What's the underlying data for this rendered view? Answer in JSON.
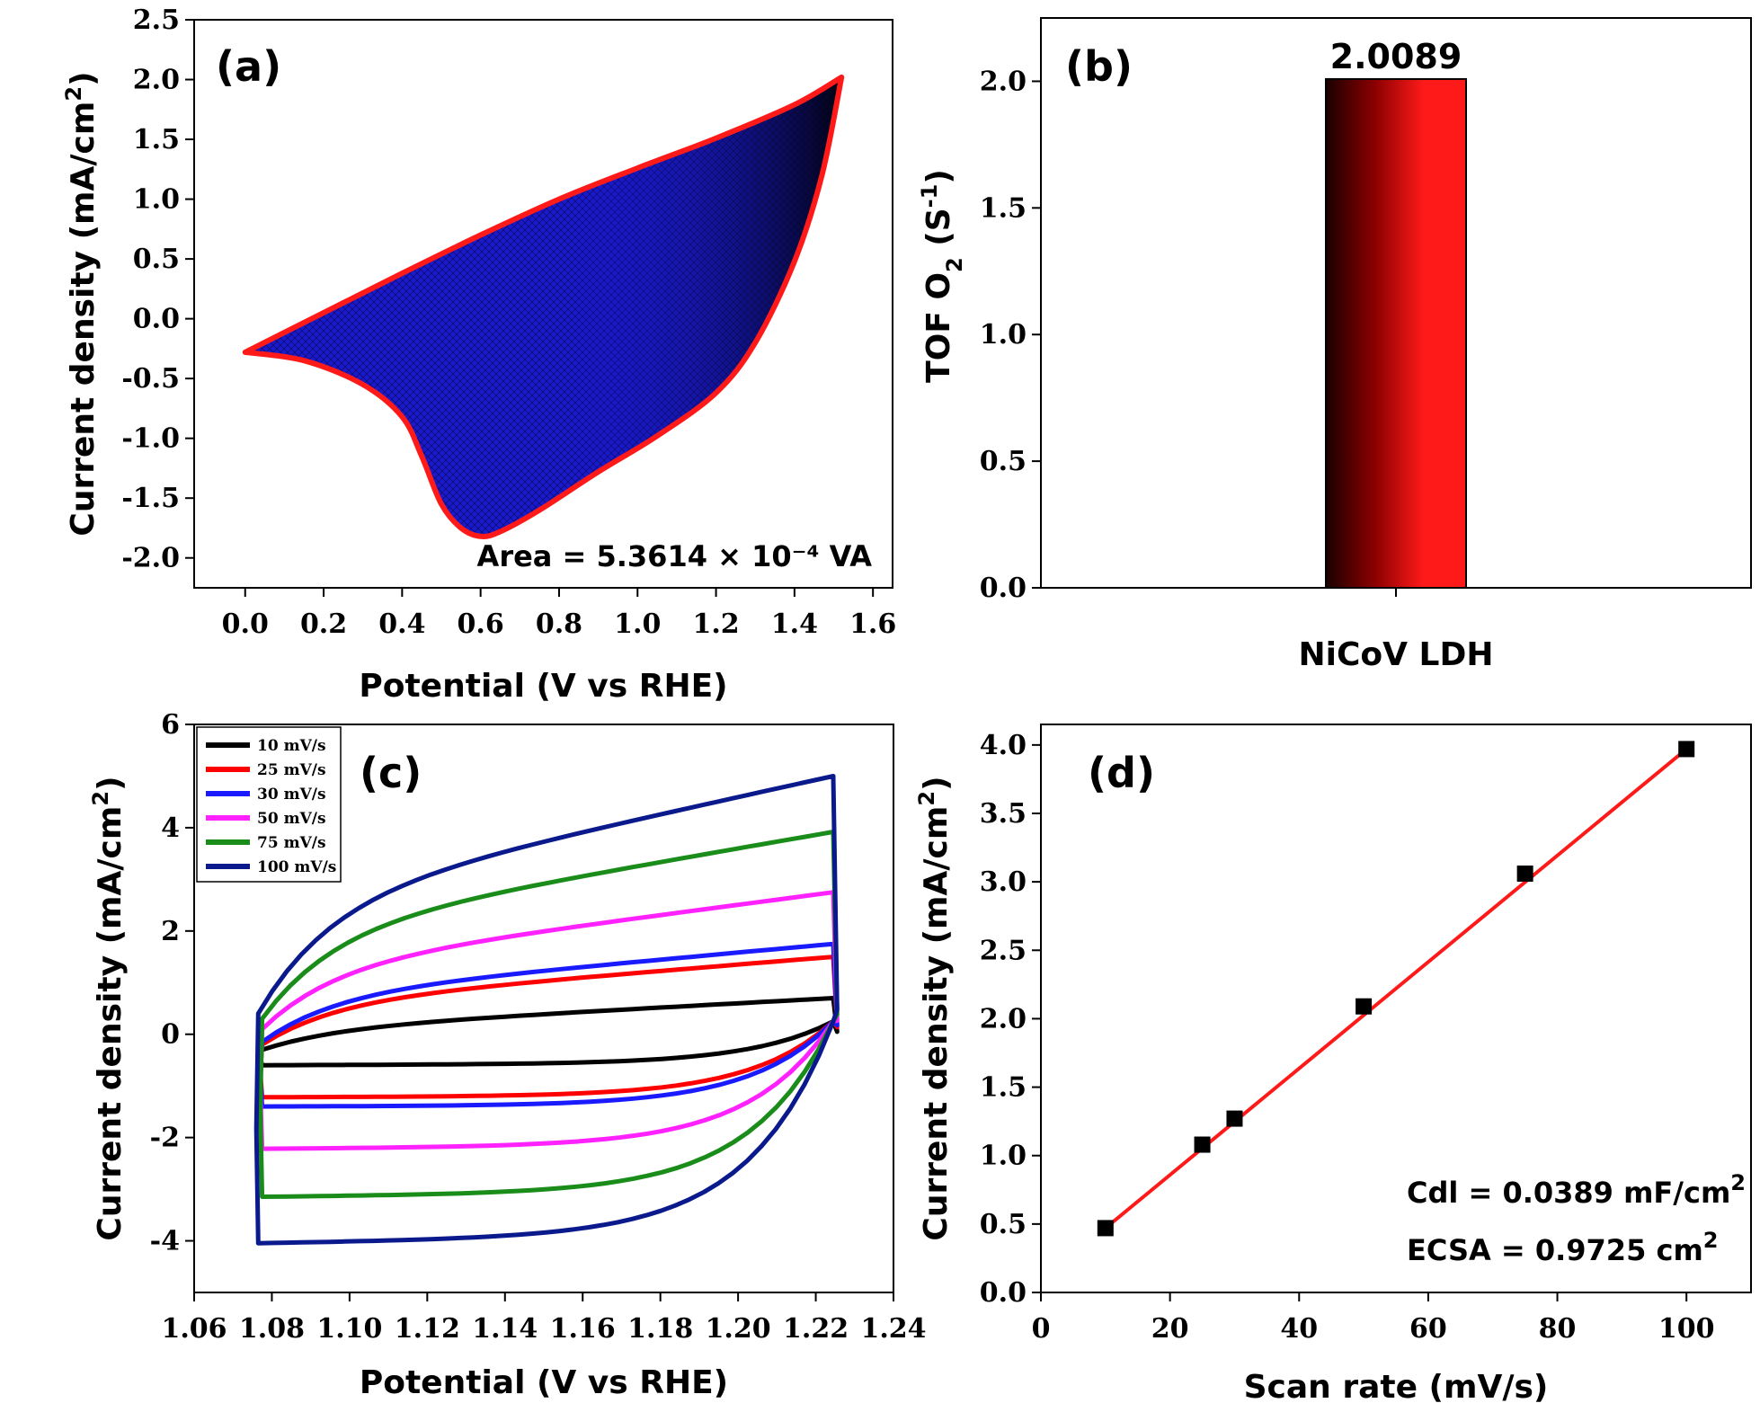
{
  "colors": {
    "fill_a": "#1a1acc",
    "border_a": "#ff1a1a",
    "bar_dark": "#1a0000",
    "bar_light": "#ff1a1a",
    "fit_line": "#ff1a1a",
    "scan_10": "#000000",
    "scan_25": "#ff0000",
    "scan_30": "#1a1aff",
    "scan_50": "#ff22ff",
    "scan_75": "#1a8c1a",
    "scan_100": "#0a1a8c"
  },
  "chart_data": [
    {
      "id": "a",
      "type": "area",
      "panel_label": "(a)",
      "xlabel": "Potential (V vs RHE)",
      "ylabel": "Current density (mA/cm²)",
      "xlim": [
        -0.13,
        1.65
      ],
      "ylim": [
        -2.25,
        2.5
      ],
      "xticks": [
        0.0,
        0.2,
        0.4,
        0.6,
        0.8,
        1.0,
        1.2,
        1.4,
        1.6
      ],
      "xtick_labels": [
        "0.0",
        "0.2",
        "0.4",
        "0.6",
        "0.8",
        "1.0",
        "1.2",
        "1.4",
        "1.6"
      ],
      "yticks": [
        -2.0,
        -1.5,
        -1.0,
        -0.5,
        0.0,
        0.5,
        1.0,
        1.5,
        2.0,
        2.5
      ],
      "ytick_labels": [
        "-2.0",
        "-1.5",
        "-1.0",
        "-0.5",
        "0.0",
        "0.5",
        "1.0",
        "1.5",
        "2.0",
        "2.5"
      ],
      "upper_curve": [
        [
          0.0,
          -0.28
        ],
        [
          0.2,
          0.05
        ],
        [
          0.4,
          0.38
        ],
        [
          0.6,
          0.7
        ],
        [
          0.8,
          1.0
        ],
        [
          1.0,
          1.26
        ],
        [
          1.2,
          1.51
        ],
        [
          1.4,
          1.79
        ],
        [
          1.52,
          2.02
        ]
      ],
      "lower_curve": [
        [
          0.0,
          -0.28
        ],
        [
          0.15,
          -0.35
        ],
        [
          0.3,
          -0.55
        ],
        [
          0.4,
          -0.82
        ],
        [
          0.45,
          -1.15
        ],
        [
          0.5,
          -1.55
        ],
        [
          0.55,
          -1.75
        ],
        [
          0.6,
          -1.82
        ],
        [
          0.65,
          -1.78
        ],
        [
          0.75,
          -1.6
        ],
        [
          0.9,
          -1.28
        ],
        [
          1.05,
          -0.98
        ],
        [
          1.2,
          -0.62
        ],
        [
          1.3,
          -0.2
        ],
        [
          1.4,
          0.48
        ],
        [
          1.47,
          1.2
        ],
        [
          1.52,
          2.02
        ]
      ],
      "annotation": "Area = 5.3614 × 10⁻⁴ VA"
    },
    {
      "id": "b",
      "type": "bar",
      "panel_label": "(b)",
      "categories": [
        "NiCoV LDH"
      ],
      "values": [
        2.0089
      ],
      "data_labels": [
        "2.0089"
      ],
      "xlabel": "NiCoV LDH",
      "ylabel": "TOF O₂ (S⁻¹)",
      "ylim": [
        0,
        2.25
      ],
      "yticks": [
        0.0,
        0.5,
        1.0,
        1.5,
        2.0
      ],
      "ytick_labels": [
        "0.0",
        "0.5",
        "1.0",
        "1.5",
        "2.0"
      ]
    },
    {
      "id": "c",
      "type": "line",
      "panel_label": "(c)",
      "xlabel": "Potential (V vs RHE)",
      "ylabel": "Current density (mA/cm²)",
      "xlim": [
        1.06,
        1.24
      ],
      "ylim": [
        -5,
        6
      ],
      "xticks": [
        1.06,
        1.08,
        1.1,
        1.12,
        1.14,
        1.16,
        1.18,
        1.2,
        1.22,
        1.24
      ],
      "xtick_labels": [
        "1.06",
        "1.08",
        "1.10",
        "1.12",
        "1.14",
        "1.16",
        "1.18",
        "1.20",
        "1.22",
        "1.24"
      ],
      "yticks": [
        -4,
        -2,
        0,
        2,
        4,
        6
      ],
      "ytick_labels": [
        "-4",
        "-2",
        "0",
        "2",
        "4",
        "6"
      ],
      "legend_position": "top-left",
      "series": [
        {
          "name": "10 mV/s",
          "color": "#000000",
          "anodic_start": -0.3,
          "anodic_knee": 0.1,
          "anodic_mid": 0.38,
          "anodic_end": 0.7,
          "cathodic_flat": -0.57,
          "cathodic_end": -0.6,
          "vmin": 1.0775
        },
        {
          "name": "25 mV/s",
          "color": "#ff0000",
          "anodic_start": -0.2,
          "anodic_knee": 0.6,
          "anodic_mid": 0.98,
          "anodic_end": 1.5,
          "cathodic_flat": -1.2,
          "cathodic_end": -1.22,
          "vmin": 1.0775
        },
        {
          "name": "30 mV/s",
          "color": "#1a1aff",
          "anodic_start": -0.15,
          "anodic_knee": 0.75,
          "anodic_mid": 1.15,
          "anodic_end": 1.75,
          "cathodic_flat": -1.38,
          "cathodic_end": -1.4,
          "vmin": 1.0775
        },
        {
          "name": "50 mV/s",
          "color": "#ff22ff",
          "anodic_start": 0.1,
          "anodic_knee": 1.3,
          "anodic_mid": 1.92,
          "anodic_end": 2.75,
          "cathodic_flat": -2.15,
          "cathodic_end": -2.22,
          "vmin": 1.0775
        },
        {
          "name": "75 mV/s",
          "color": "#1a8c1a",
          "anodic_start": 0.3,
          "anodic_knee": 2.0,
          "anodic_mid": 2.8,
          "anodic_end": 3.92,
          "cathodic_flat": -3.05,
          "cathodic_end": -3.15,
          "vmin": 1.0775
        },
        {
          "name": "100 mV/s",
          "color": "#0a1a8c",
          "anodic_start": 0.4,
          "anodic_knee": 2.55,
          "anodic_mid": 3.65,
          "anodic_end": 5.0,
          "cathodic_flat": -3.88,
          "cathodic_end": -4.05,
          "vmin": 1.0765
        }
      ]
    },
    {
      "id": "d",
      "type": "scatter",
      "panel_label": "(d)",
      "xlabel": "Scan rate (mV/s)",
      "ylabel": "Current density (mA/cm²)",
      "xlim": [
        0,
        110
      ],
      "ylim": [
        0,
        4.15
      ],
      "xticks": [
        0,
        20,
        40,
        60,
        80,
        100
      ],
      "xtick_labels": [
        "0",
        "20",
        "40",
        "60",
        "80",
        "100"
      ],
      "yticks": [
        0.0,
        0.5,
        1.0,
        1.5,
        2.0,
        2.5,
        3.0,
        3.5,
        4.0
      ],
      "ytick_labels": [
        "0.0",
        "0.5",
        "1.0",
        "1.5",
        "2.0",
        "2.5",
        "3.0",
        "3.5",
        "4.0"
      ],
      "x": [
        10,
        25,
        30,
        50,
        75,
        100
      ],
      "y": [
        0.47,
        1.08,
        1.27,
        2.09,
        3.06,
        3.97
      ],
      "fit": {
        "x": [
          10,
          100
        ],
        "y": [
          0.47,
          3.97
        ]
      },
      "annotations": [
        "Cdl = 0.0389 mF/cm²",
        "ECSA = 0.9725 cm²"
      ]
    }
  ]
}
